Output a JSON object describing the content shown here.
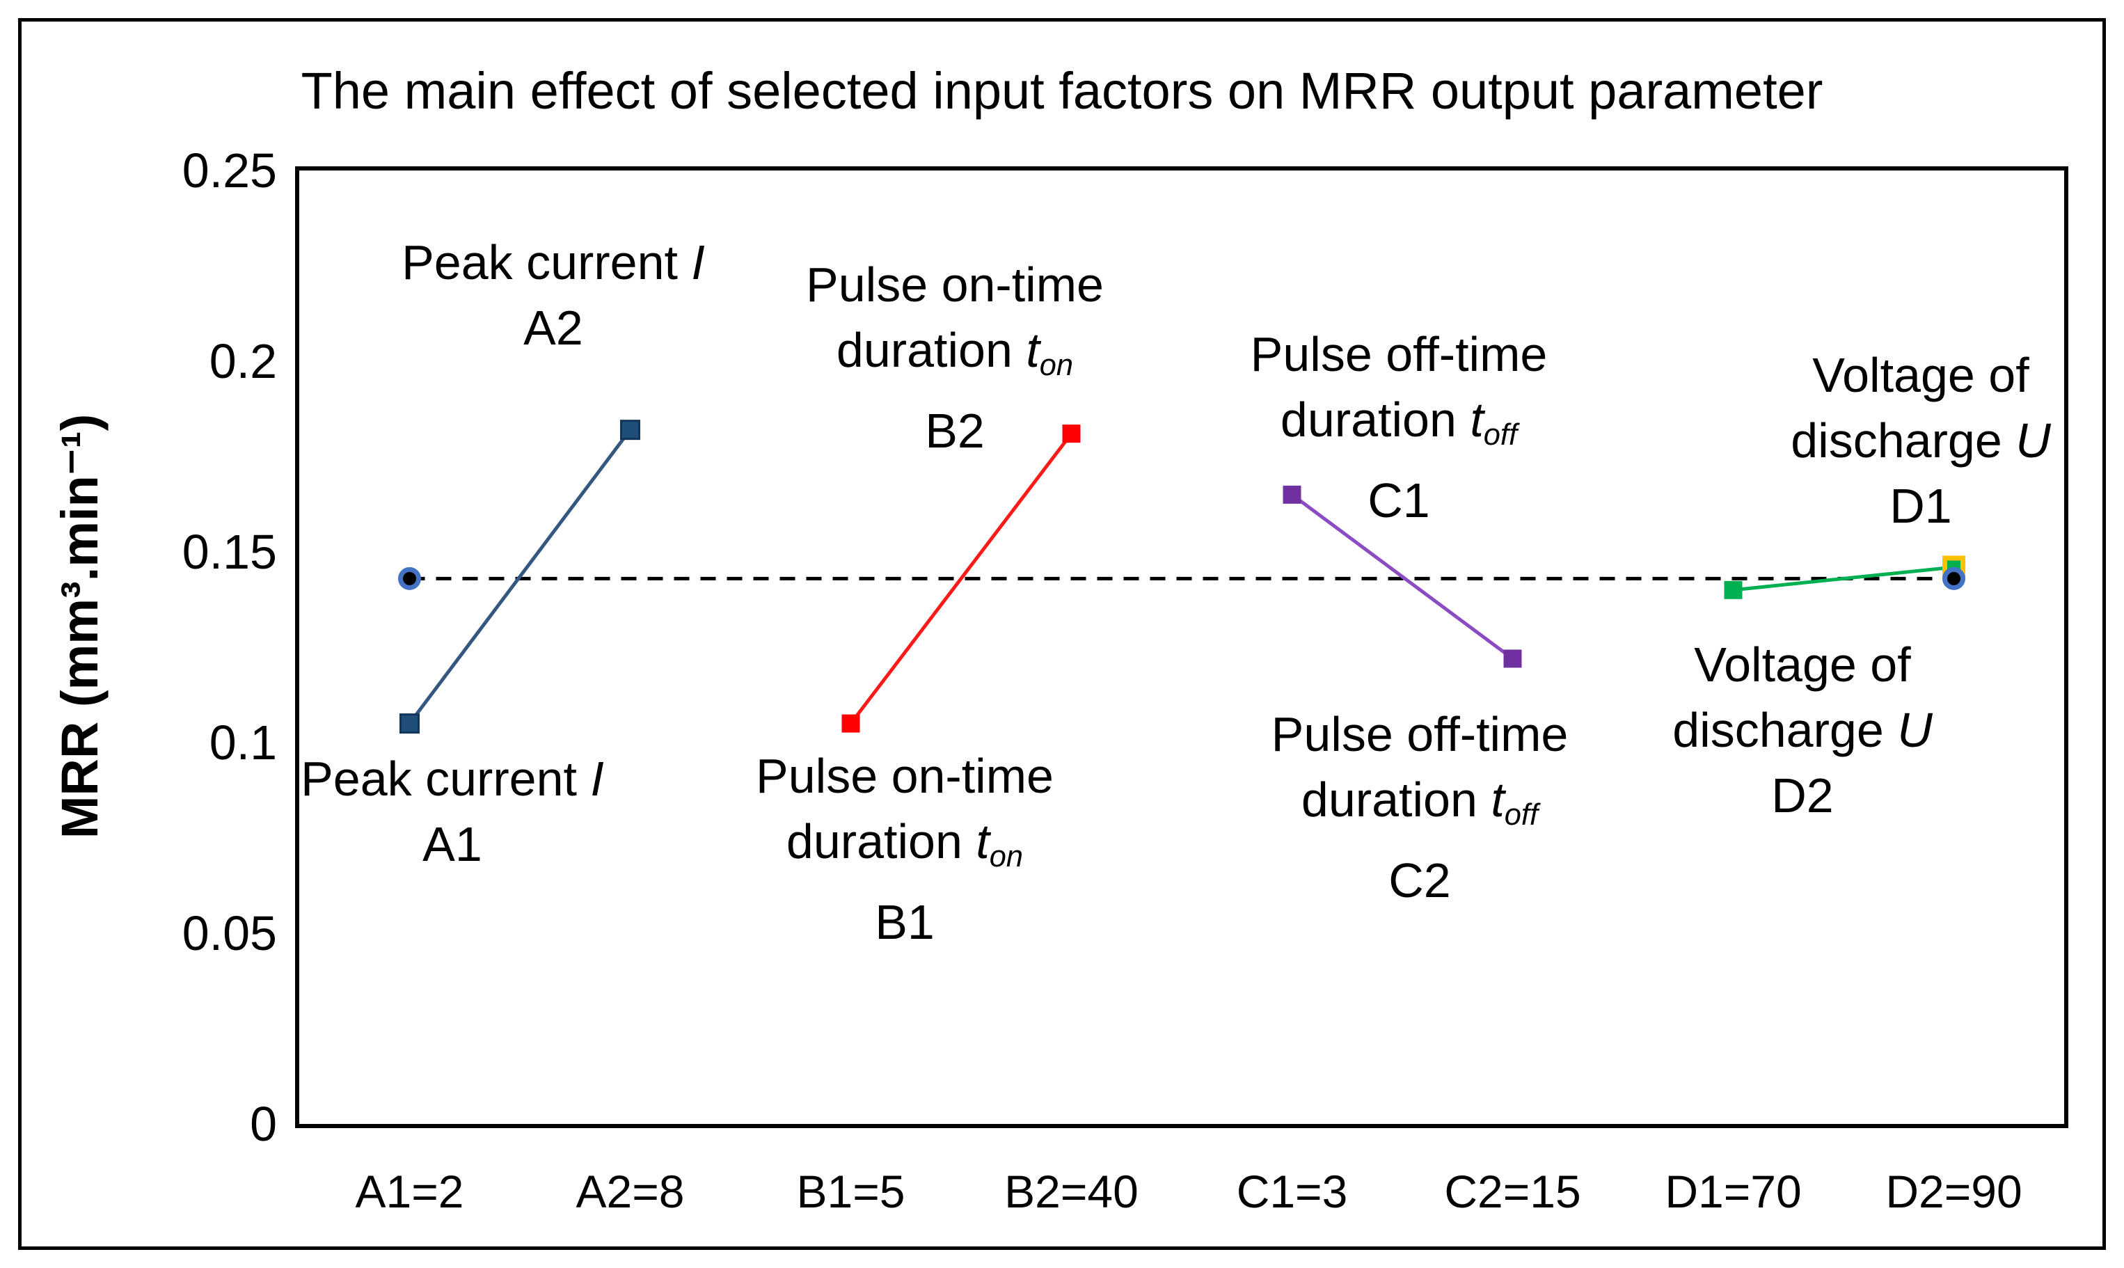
{
  "chart_data": {
    "type": "line",
    "title": "The main effect of selected input factors on MRR output parameter",
    "ylabel": "MRR (mm³.min⁻¹)",
    "xlabel": "",
    "ylim": [
      0,
      0.25
    ],
    "yticks": [
      0,
      0.05,
      0.1,
      0.15,
      0.2,
      0.25
    ],
    "ytick_labels": [
      "0",
      "0.05",
      "0.1",
      "0.15",
      "0.2",
      "0.25"
    ],
    "categories": [
      "A1=2",
      "A2=8",
      "B1=5",
      "B2=40",
      "C1=3",
      "C2=15",
      "D1=70",
      "D2=90"
    ],
    "grid": false,
    "legend": "none",
    "series": [
      {
        "name": "Peak current I",
        "line_color": "#33577F",
        "marker_fill": "#1F4E79",
        "marker_border": "#12365B",
        "border_width": 3,
        "points": [
          {
            "cat": 0,
            "value": 0.105
          },
          {
            "cat": 1,
            "value": 0.182
          }
        ]
      },
      {
        "name": "Pulse on-time duration t_on",
        "line_color": "#FF1A1A",
        "marker_fill": "#FF0000",
        "marker_border": null,
        "border_width": 0,
        "points": [
          {
            "cat": 2,
            "value": 0.105
          },
          {
            "cat": 3,
            "value": 0.181
          }
        ]
      },
      {
        "name": "Pulse off-time duration t_off",
        "line_color": "#8B4BC2",
        "marker_fill": "#7030A0",
        "marker_border": null,
        "border_width": 0,
        "points": [
          {
            "cat": 4,
            "value": 0.165
          },
          {
            "cat": 5,
            "value": 0.122
          }
        ]
      },
      {
        "name": "Voltage of discharge U",
        "line_color": "#00B050",
        "marker_fill": "#00B050",
        "marker_border": null,
        "border_width": 0,
        "points": [
          {
            "cat": 6,
            "value": 0.14
          },
          {
            "cat": 7,
            "value": 0.146,
            "marker_border": "#FFC000",
            "border_width": 7
          }
        ]
      }
    ],
    "mean_line": {
      "value": 0.143,
      "style": "dashed",
      "color": "#000000",
      "from_cat": 0,
      "to_cat": 7,
      "endpoint_marker": {
        "shape": "circle",
        "fill": "#000000",
        "ring": "#4472C4"
      }
    },
    "annotations": [
      {
        "x": 795,
        "y": 330,
        "lines": [
          [
            {
              "t": "Peak current "
            },
            {
              "t": "I",
              "i": true
            }
          ],
          [
            {
              "t": "A2"
            }
          ]
        ]
      },
      {
        "x": 650,
        "y": 1072,
        "lines": [
          [
            {
              "t": "Peak current "
            },
            {
              "t": "I",
              "i": true
            }
          ],
          [
            {
              "t": "A1"
            }
          ]
        ]
      },
      {
        "x": 1372,
        "y": 362,
        "lines": [
          [
            {
              "t": "Pulse on-time"
            }
          ],
          [
            {
              "t": "duration "
            },
            {
              "t": "t",
              "i": true
            },
            {
              "t": "on",
              "sub": true
            }
          ],
          [
            {
              "t": "B2"
            }
          ]
        ]
      },
      {
        "x": 1300,
        "y": 1068,
        "lines": [
          [
            {
              "t": "Pulse on-time"
            }
          ],
          [
            {
              "t": "duration "
            },
            {
              "t": "t",
              "i": true
            },
            {
              "t": "on",
              "sub": true
            }
          ],
          [
            {
              "t": "B1"
            }
          ]
        ]
      },
      {
        "x": 2010,
        "y": 462,
        "lines": [
          [
            {
              "t": "Pulse off-time"
            }
          ],
          [
            {
              "t": "duration "
            },
            {
              "t": "t",
              "i": true
            },
            {
              "t": "off",
              "sub": true
            }
          ],
          [
            {
              "t": "C1"
            }
          ]
        ]
      },
      {
        "x": 2040,
        "y": 1008,
        "lines": [
          [
            {
              "t": "Pulse off-time"
            }
          ],
          [
            {
              "t": "duration "
            },
            {
              "t": "t",
              "i": true
            },
            {
              "t": "off",
              "sub": true
            }
          ],
          [
            {
              "t": "C2"
            }
          ]
        ]
      },
      {
        "x": 2760,
        "y": 492,
        "lines": [
          [
            {
              "t": "Voltage of"
            }
          ],
          [
            {
              "t": "discharge "
            },
            {
              "t": "U",
              "i": true
            }
          ],
          [
            {
              "t": "D1"
            }
          ]
        ]
      },
      {
        "x": 2590,
        "y": 908,
        "lines": [
          [
            {
              "t": "Voltage of"
            }
          ],
          [
            {
              "t": "discharge "
            },
            {
              "t": "U",
              "i": true
            }
          ],
          [
            {
              "t": "D2"
            }
          ]
        ]
      }
    ]
  }
}
